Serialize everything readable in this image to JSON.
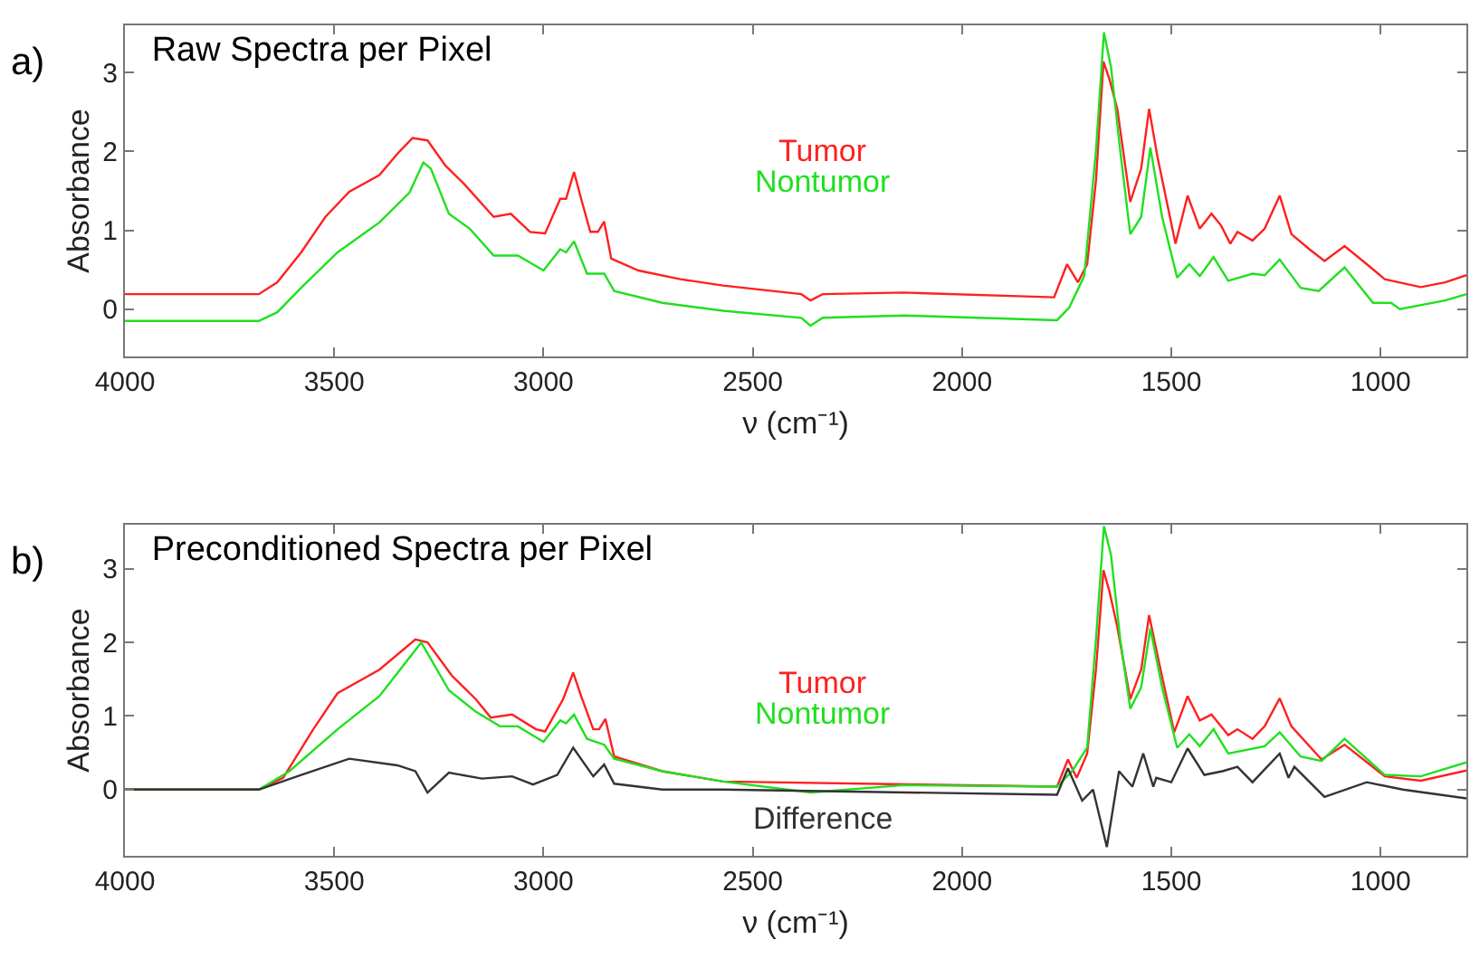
{
  "chart_data": [
    {
      "type": "line",
      "title": "Raw Spectra per Pixel",
      "xlabel": "ν (cm⁻¹)",
      "ylabel": "Absorbance",
      "annotations": [
        "a)"
      ],
      "xlim": [
        4000,
        795
      ],
      "xticks": [
        4000,
        3500,
        3000,
        2500,
        2000,
        1500,
        1000
      ],
      "ylim": [
        -0.6,
        3.6
      ],
      "yticks": [
        0,
        1,
        2,
        3
      ],
      "series": [
        {
          "name": "Tumor",
          "color": "#ff2020",
          "x": [
            4000,
            3680,
            3636,
            3579,
            3521,
            3464,
            3392,
            3349,
            3313,
            3277,
            3234,
            3190,
            3119,
            3078,
            3032,
            2996,
            2960,
            2946,
            2927,
            2910,
            2888,
            2870,
            2855,
            2838,
            2773,
            2673,
            2571,
            2384,
            2362,
            2333,
            2139,
            1780,
            1749,
            1723,
            1701,
            1680,
            1662,
            1648,
            1629,
            1598,
            1572,
            1553,
            1533,
            1490,
            1461,
            1432,
            1404,
            1381,
            1359,
            1342,
            1306,
            1277,
            1241,
            1213,
            1170,
            1134,
            1086,
            1033,
            990,
            904,
            846,
            795
          ],
          "values": [
            0.19,
            0.19,
            0.34,
            0.72,
            1.17,
            1.49,
            1.7,
            1.97,
            2.17,
            2.14,
            1.82,
            1.59,
            1.17,
            1.21,
            0.98,
            0.96,
            1.4,
            1.4,
            1.74,
            1.4,
            0.98,
            0.98,
            1.11,
            0.64,
            0.49,
            0.38,
            0.3,
            0.19,
            0.11,
            0.19,
            0.21,
            0.15,
            0.57,
            0.34,
            0.57,
            1.63,
            3.14,
            2.92,
            2.54,
            1.36,
            1.78,
            2.54,
            1.93,
            0.83,
            1.44,
            1.02,
            1.21,
            1.06,
            0.83,
            0.98,
            0.87,
            1.02,
            1.44,
            0.95,
            0.76,
            0.61,
            0.8,
            0.57,
            0.38,
            0.28,
            0.34,
            0.43
          ]
        },
        {
          "name": "Nontumor",
          "color": "#20e020",
          "x": [
            4000,
            3680,
            3636,
            3579,
            3492,
            3392,
            3320,
            3287,
            3269,
            3226,
            3176,
            3119,
            3061,
            3000,
            2960,
            2946,
            2927,
            2896,
            2855,
            2831,
            2716,
            2571,
            2384,
            2362,
            2333,
            2139,
            1773,
            1744,
            1708,
            1680,
            1661,
            1644,
            1622,
            1598,
            1572,
            1550,
            1522,
            1486,
            1457,
            1432,
            1399,
            1364,
            1306,
            1277,
            1241,
            1191,
            1148,
            1086,
            1018,
            975,
            954,
            846,
            795
          ],
          "values": [
            -0.15,
            -0.15,
            -0.04,
            0.27,
            0.72,
            1.1,
            1.48,
            1.86,
            1.78,
            1.21,
            1.02,
            0.68,
            0.68,
            0.49,
            0.76,
            0.72,
            0.86,
            0.45,
            0.45,
            0.23,
            0.08,
            -0.02,
            -0.11,
            -0.21,
            -0.11,
            -0.08,
            -0.14,
            0.02,
            0.42,
            2.01,
            3.51,
            3.07,
            2.01,
            0.95,
            1.17,
            2.05,
            1.17,
            0.4,
            0.57,
            0.42,
            0.66,
            0.36,
            0.45,
            0.43,
            0.63,
            0.27,
            0.23,
            0.53,
            0.08,
            0.08,
            0.0,
            0.11,
            0.19
          ]
        }
      ]
    },
    {
      "type": "line",
      "title": "Preconditioned Spectra per Pixel",
      "xlabel": "ν (cm⁻¹)",
      "ylabel": "Absorbance",
      "annotations": [
        "b)"
      ],
      "xlim": [
        4000,
        795
      ],
      "xticks": [
        4000,
        3500,
        3000,
        2500,
        2000,
        1500,
        1000
      ],
      "ylim": [
        -0.9,
        3.6
      ],
      "yticks": [
        0,
        1,
        2,
        3
      ],
      "series": [
        {
          "name": "Tumor",
          "color": "#ff2020",
          "x": [
            4000,
            3680,
            3622,
            3550,
            3492,
            3392,
            3306,
            3277,
            3219,
            3162,
            3126,
            3075,
            3018,
            2996,
            2953,
            2929,
            2910,
            2881,
            2867,
            2852,
            2831,
            2716,
            2571,
            1773,
            1747,
            1726,
            1701,
            1680,
            1662,
            1648,
            1629,
            1598,
            1572,
            1553,
            1529,
            1493,
            1461,
            1432,
            1404,
            1364,
            1342,
            1306,
            1277,
            1241,
            1213,
            1141,
            1086,
            990,
            904,
            795
          ],
          "values": [
            0,
            0,
            0.16,
            0.82,
            1.31,
            1.63,
            2.04,
            2.0,
            1.55,
            1.23,
            0.98,
            1.02,
            0.82,
            0.79,
            1.23,
            1.59,
            1.27,
            0.82,
            0.82,
            0.96,
            0.45,
            0.25,
            0.11,
            0.04,
            0.41,
            0.16,
            0.49,
            1.63,
            2.98,
            2.7,
            2.21,
            1.23,
            1.63,
            2.37,
            1.72,
            0.78,
            1.27,
            0.94,
            1.02,
            0.74,
            0.82,
            0.69,
            0.86,
            1.24,
            0.86,
            0.41,
            0.61,
            0.18,
            0.12,
            0.26
          ]
        },
        {
          "name": "Nontumor",
          "color": "#20e020",
          "x": [
            4000,
            3680,
            3607,
            3492,
            3392,
            3292,
            3226,
            3162,
            3104,
            3061,
            3000,
            2960,
            2946,
            2927,
            2896,
            2855,
            2831,
            2716,
            2571,
            2362,
            2139,
            1773,
            1737,
            1701,
            1680,
            1661,
            1644,
            1622,
            1598,
            1572,
            1550,
            1522,
            1486,
            1457,
            1432,
            1399,
            1364,
            1277,
            1241,
            1191,
            1141,
            1086,
            990,
            904,
            795
          ],
          "values": [
            0,
            0,
            0.25,
            0.82,
            1.27,
            2.0,
            1.35,
            1.06,
            0.86,
            0.86,
            0.65,
            0.94,
            0.9,
            1.02,
            0.69,
            0.61,
            0.42,
            0.25,
            0.11,
            -0.04,
            0.06,
            0.04,
            0.25,
            0.57,
            2.04,
            3.58,
            3.19,
            2.04,
            1.1,
            1.39,
            2.19,
            1.39,
            0.57,
            0.75,
            0.59,
            0.82,
            0.49,
            0.59,
            0.78,
            0.45,
            0.39,
            0.69,
            0.2,
            0.18,
            0.37
          ]
        },
        {
          "name": "Difference",
          "color": "#333333",
          "x": [
            4000,
            3680,
            3579,
            3464,
            3349,
            3306,
            3277,
            3226,
            3147,
            3075,
            3025,
            2967,
            2929,
            2881,
            2855,
            2831,
            2716,
            2571,
            1773,
            1747,
            1713,
            1687,
            1654,
            1625,
            1593,
            1567,
            1543,
            1536,
            1500,
            1461,
            1421,
            1378,
            1342,
            1306,
            1241,
            1220,
            1206,
            1134,
            1033,
            947,
            795
          ],
          "values": [
            0,
            0,
            0.2,
            0.42,
            0.33,
            0.25,
            -0.04,
            0.23,
            0.15,
            0.18,
            0.07,
            0.2,
            0.57,
            0.18,
            0.34,
            0.08,
            0,
            0,
            -0.07,
            0.29,
            -0.15,
            0,
            -0.78,
            0.25,
            0.04,
            0.49,
            0.04,
            0.16,
            0.1,
            0.56,
            0.2,
            0.25,
            0.31,
            0.1,
            0.49,
            0.16,
            0.31,
            -0.1,
            0.1,
            0,
            -0.12
          ]
        }
      ]
    }
  ]
}
